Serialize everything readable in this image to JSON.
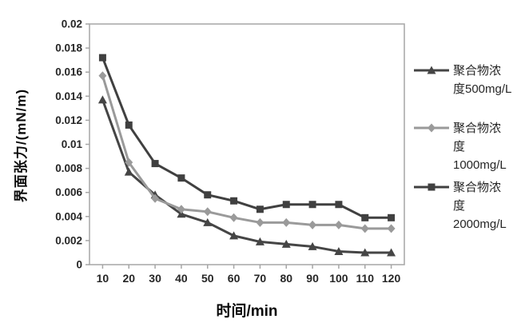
{
  "chart_data": {
    "type": "line",
    "title": "",
    "xlabel": "时间/min",
    "ylabel": "界面张力/(mN/m)",
    "categories": [
      10,
      20,
      30,
      40,
      50,
      60,
      70,
      80,
      90,
      100,
      110,
      120
    ],
    "ylim": [
      0,
      0.02
    ],
    "ytick_step": 0.002,
    "yticks": [
      "0",
      "0.002",
      "0.004",
      "0.006",
      "0.008",
      "0.01",
      "0.012",
      "0.014",
      "0.016",
      "0.018",
      "0.02"
    ],
    "grid": false,
    "legend_position": "right",
    "axis_color": "#a6a6a6",
    "tick_label_color": "#262626",
    "series": [
      {
        "name": "聚合物浓度500mg/L",
        "legend_lines": [
          "聚合物浓",
          "度500mg/L"
        ],
        "marker": "triangle",
        "color": "#454545",
        "values": [
          0.0137,
          0.0077,
          0.0058,
          0.0042,
          0.0035,
          0.0024,
          0.0019,
          0.0017,
          0.0015,
          0.0011,
          0.001,
          0.001
        ]
      },
      {
        "name": "聚合物浓度1000mg/L",
        "legend_lines": [
          "聚合物浓",
          "度",
          "1000mg/L"
        ],
        "marker": "diamond",
        "color": "#9a9a9a",
        "values": [
          0.0157,
          0.0085,
          0.0055,
          0.0046,
          0.0044,
          0.0039,
          0.0035,
          0.0035,
          0.0033,
          0.0033,
          0.003,
          0.003
        ]
      },
      {
        "name": "聚合物浓度2000mg/L",
        "legend_lines": [
          "聚合物浓",
          "度",
          "2000mg/L"
        ],
        "marker": "square",
        "color": "#404040",
        "values": [
          0.0172,
          0.0116,
          0.0084,
          0.0072,
          0.0058,
          0.0053,
          0.0046,
          0.005,
          0.005,
          0.005,
          0.0039,
          0.0039
        ]
      }
    ]
  }
}
